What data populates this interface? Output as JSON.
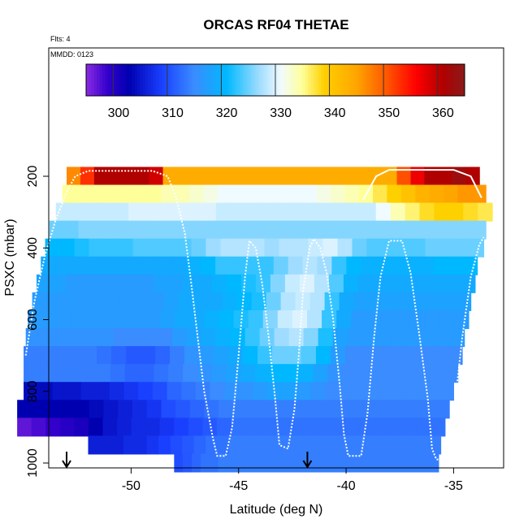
{
  "chart_data": {
    "type": "heatmap",
    "title": "ORCAS RF04 THETAE",
    "flights_label": "Flts: 4",
    "date_label": "MMDD: 0123",
    "xlabel": "Latitude (deg N)",
    "ylabel": "PSXC (mbar)",
    "xlim": [
      -55,
      -33
    ],
    "ylim": [
      1000,
      50
    ],
    "x_ticks": [
      -50,
      -45,
      -40,
      -35
    ],
    "y_ticks": [
      200,
      400,
      600,
      800,
      1000
    ],
    "y_reversed": true,
    "colorbar": {
      "range": [
        294,
        364
      ],
      "ticks": [
        300,
        310,
        320,
        330,
        340,
        350,
        360
      ],
      "boundaries": [
        299,
        309,
        319,
        329,
        339,
        349,
        359
      ]
    },
    "rows": [
      {
        "p": 200,
        "x0": -53.0,
        "x1": -33.8,
        "z": [
          346,
          352,
          360,
          360,
          360,
          360,
          358,
          343,
          343,
          343,
          343,
          343,
          343,
          343,
          343,
          343,
          343,
          343,
          343,
          343,
          343,
          343,
          343,
          343,
          350,
          356,
          360,
          360,
          362,
          360
        ]
      },
      {
        "p": 250,
        "x0": -53.2,
        "x1": -33.5,
        "z": [
          334,
          334,
          334,
          334,
          334,
          334,
          334,
          333,
          333,
          332,
          331,
          330,
          330,
          330,
          330,
          330,
          330,
          330,
          331,
          332,
          333,
          334,
          336,
          338,
          340,
          342,
          343,
          344,
          345,
          345
        ]
      },
      {
        "p": 300,
        "x0": -53.5,
        "x1": -33.2,
        "z": [
          328,
          328,
          328,
          328,
          328,
          329,
          329,
          329,
          329,
          329,
          329,
          328,
          328,
          328,
          328,
          328,
          328,
          328,
          328,
          328,
          328,
          328,
          330,
          333,
          335,
          337,
          338,
          338,
          337,
          336
        ]
      },
      {
        "p": 350,
        "x0": -53.8,
        "x1": -33.5,
        "z": [
          324,
          324,
          325,
          325,
          325,
          325,
          325,
          325,
          325,
          325,
          325,
          325,
          325,
          325,
          325,
          325,
          325,
          325,
          325,
          325,
          325,
          325,
          325,
          325,
          325,
          325,
          325,
          325,
          325,
          325
        ]
      },
      {
        "p": 400,
        "x0": -54.0,
        "x1": -33.6,
        "z": [
          320,
          320,
          321,
          322,
          322,
          322,
          323,
          323,
          323,
          323,
          324,
          326,
          327,
          327,
          327,
          326,
          327,
          327,
          328,
          329,
          327,
          324,
          323,
          323,
          323,
          323,
          324,
          324,
          324,
          324
        ]
      },
      {
        "p": 450,
        "x0": -54.2,
        "x1": -33.9,
        "z": [
          318,
          318,
          318,
          318,
          318,
          318,
          318,
          318,
          318,
          318,
          319,
          320,
          322,
          322,
          322,
          322,
          324,
          326,
          327,
          326,
          322,
          320,
          319,
          319,
          319,
          319,
          319,
          320,
          320,
          320
        ]
      },
      {
        "p": 500,
        "x0": -54.4,
        "x1": -34.0,
        "z": [
          317,
          317,
          316,
          316,
          316,
          316,
          316,
          316,
          317,
          317,
          318,
          318,
          319,
          320,
          321,
          322,
          325,
          328,
          329,
          327,
          323,
          319,
          318,
          318,
          318,
          318,
          318,
          318,
          318,
          318
        ]
      },
      {
        "p": 550,
        "x0": -54.6,
        "x1": -34.2,
        "z": [
          316,
          316,
          316,
          316,
          316,
          316,
          316,
          316,
          316,
          317,
          318,
          318,
          318,
          319,
          320,
          321,
          324,
          327,
          328,
          327,
          322,
          318,
          317,
          317,
          317,
          317,
          317,
          317,
          317,
          317
        ]
      },
      {
        "p": 600,
        "x0": -54.8,
        "x1": -34.3,
        "z": [
          316,
          316,
          316,
          316,
          316,
          316,
          316,
          316,
          316,
          317,
          318,
          318,
          319,
          320,
          321,
          322,
          325,
          328,
          329,
          327,
          322,
          318,
          316,
          316,
          316,
          316,
          316,
          316,
          316,
          316
        ]
      },
      {
        "p": 650,
        "x0": -54.9,
        "x1": -34.5,
        "z": [
          315,
          315,
          315,
          315,
          315,
          315,
          314,
          314,
          314,
          314,
          316,
          317,
          318,
          319,
          320,
          322,
          324,
          326,
          327,
          325,
          321,
          317,
          316,
          316,
          316,
          316,
          316,
          316,
          316,
          316
        ]
      },
      {
        "p": 700,
        "x0": -55.0,
        "x1": -34.6,
        "z": [
          313,
          313,
          313,
          313,
          313,
          312,
          311,
          310,
          310,
          311,
          313,
          315,
          316,
          317,
          318,
          320,
          322,
          324,
          324,
          323,
          320,
          316,
          314,
          314,
          314,
          314,
          314,
          314,
          314,
          314
        ]
      },
      {
        "p": 750,
        "x0": -55.0,
        "x1": -34.8,
        "z": [
          313,
          313,
          313,
          313,
          313,
          313,
          312,
          311,
          311,
          312,
          313,
          314,
          315,
          316,
          317,
          318,
          319,
          320,
          320,
          319,
          317,
          315,
          314,
          314,
          314,
          314,
          314,
          314,
          314,
          314
        ]
      },
      {
        "p": 800,
        "x0": -55.0,
        "x1": -35.0,
        "z": [
          303,
          303,
          304,
          304,
          305,
          305,
          306,
          307,
          308,
          309,
          311,
          312,
          313,
          314,
          315,
          315,
          316,
          317,
          317,
          316,
          315,
          314,
          314,
          314,
          314,
          314,
          314,
          314,
          314,
          314
        ]
      },
      {
        "p": 850,
        "x0": -55.3,
        "x1": -35.2,
        "z": [
          302,
          302,
          302,
          302,
          302,
          303,
          304,
          305,
          306,
          307,
          309,
          310,
          311,
          312,
          313,
          313,
          313,
          313,
          313,
          313,
          313,
          313,
          313,
          313,
          313,
          313,
          313,
          313,
          313,
          313
        ]
      },
      {
        "p": 900,
        "x0": -55.3,
        "x1": -35.4,
        "z": [
          296,
          297,
          298,
          299,
          300,
          302,
          304,
          305,
          306,
          306,
          307,
          308,
          309,
          310,
          311,
          312,
          312,
          312,
          312,
          312,
          312,
          312,
          312,
          312,
          312,
          312,
          312,
          312,
          312,
          312
        ]
      },
      {
        "p": 950,
        "x0": -52.0,
        "x1": -35.6,
        "z": [
          305,
          305,
          305,
          306,
          306,
          307,
          308,
          309,
          310,
          311,
          312,
          312,
          313,
          313,
          313,
          313,
          313,
          313,
          313,
          313,
          313,
          313,
          313,
          313,
          313,
          313,
          313,
          313,
          313,
          313
        ]
      },
      {
        "p": 1000,
        "x0": -48.0,
        "x1": -35.7,
        "z": [
          309,
          310,
          311,
          312,
          312,
          313,
          313,
          313,
          313,
          313,
          313,
          313,
          313,
          313,
          313,
          313,
          313,
          313,
          313,
          313,
          313,
          313,
          313,
          313,
          313,
          313,
          313,
          313,
          313,
          313
        ]
      }
    ],
    "flight_track": [
      [
        -54.9,
        700
      ],
      [
        -54.5,
        550
      ],
      [
        -54.0,
        420
      ],
      [
        -53.5,
        320
      ],
      [
        -53.0,
        245
      ],
      [
        -52.6,
        200
      ],
      [
        -52.0,
        185
      ],
      [
        -49.0,
        185
      ],
      [
        -48.3,
        200
      ],
      [
        -47.9,
        260
      ],
      [
        -47.5,
        360
      ],
      [
        -47.2,
        500
      ],
      [
        -46.9,
        650
      ],
      [
        -46.6,
        800
      ],
      [
        -46.2,
        930
      ],
      [
        -46.0,
        980
      ],
      [
        -45.6,
        980
      ],
      [
        -45.3,
        900
      ],
      [
        -45.0,
        700
      ],
      [
        -44.7,
        480
      ],
      [
        -44.5,
        380
      ],
      [
        -44.2,
        400
      ],
      [
        -43.9,
        500
      ],
      [
        -43.6,
        650
      ],
      [
        -43.3,
        820
      ],
      [
        -43.1,
        950
      ],
      [
        -42.7,
        960
      ],
      [
        -42.4,
        850
      ],
      [
        -42.2,
        700
      ],
      [
        -42.0,
        520
      ],
      [
        -41.7,
        400
      ],
      [
        -41.5,
        375
      ],
      [
        -41.2,
        400
      ],
      [
        -40.9,
        470
      ],
      [
        -40.6,
        600
      ],
      [
        -40.3,
        780
      ],
      [
        -40.1,
        920
      ],
      [
        -39.9,
        980
      ],
      [
        -39.3,
        980
      ],
      [
        -39.0,
        860
      ],
      [
        -38.7,
        650
      ],
      [
        -38.4,
        480
      ],
      [
        -38.0,
        380
      ],
      [
        -37.4,
        380
      ],
      [
        -37.0,
        470
      ],
      [
        -36.6,
        640
      ],
      [
        -36.2,
        820
      ],
      [
        -36.0,
        960
      ],
      [
        -35.8,
        990
      ],
      [
        -35.4,
        990
      ],
      [
        -35.0,
        870
      ],
      [
        -34.6,
        650
      ],
      [
        -34.2,
        480
      ],
      [
        -33.8,
        390
      ],
      [
        -33.6,
        370
      ]
    ],
    "upper_track": [
      [
        -39.2,
        265
      ],
      [
        -38.6,
        200
      ],
      [
        -38.0,
        182
      ],
      [
        -35.0,
        182
      ],
      [
        -34.2,
        200
      ],
      [
        -33.7,
        260
      ]
    ],
    "markers_lat": [
      -53.0,
      -41.8
    ]
  }
}
